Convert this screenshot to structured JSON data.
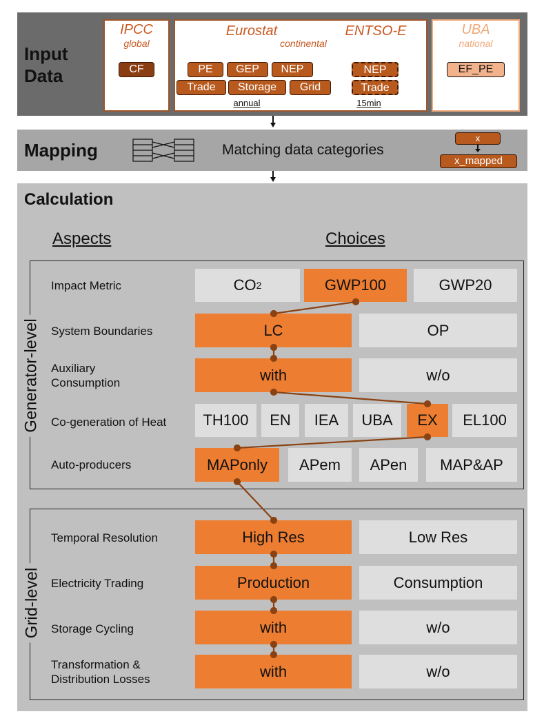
{
  "input": {
    "title_line1": "Input",
    "title_line2": "Data",
    "ipcc": {
      "name": "IPCC",
      "scope": "global",
      "chips": [
        "CF"
      ]
    },
    "eurostat": {
      "name": "Eurostat",
      "scope": "continental",
      "chips_row1": [
        "PE",
        "GEP",
        "NEP"
      ],
      "chips_row2": [
        "Trade",
        "Storage",
        "Grid"
      ],
      "resolution": "annual"
    },
    "entsoe": {
      "name": "ENTSO-E",
      "chips": [
        "NEP",
        "Trade"
      ],
      "resolution": "15min"
    },
    "uba": {
      "name": "UBA",
      "scope": "national",
      "chips": [
        "EF_PE"
      ]
    }
  },
  "mapping": {
    "title": "Mapping",
    "description": "Matching data categories",
    "example_from": "x",
    "example_to": "x_mapped"
  },
  "calculation": {
    "title": "Calculation",
    "aspects_header": "Aspects",
    "choices_header": "Choices",
    "generator_label": "Generator-level",
    "grid_label": "Grid-level",
    "rows": [
      {
        "aspect": "Impact Metric",
        "choices": [
          "CO",
          "GWP100",
          "GWP20"
        ],
        "co2_sub": "2",
        "selected": "GWP100"
      },
      {
        "aspect": "System Boundaries",
        "choices": [
          "LC",
          "OP"
        ],
        "selected": "LC"
      },
      {
        "aspect": "Auxiliary\nConsumption",
        "choices": [
          "with",
          "w/o"
        ],
        "selected": "with"
      },
      {
        "aspect": "Co-generation of Heat",
        "choices": [
          "TH100",
          "EN",
          "IEA",
          "UBA",
          "EX",
          "EL100"
        ],
        "selected": "EX"
      },
      {
        "aspect": "Auto-producers",
        "choices": [
          "MAPonly",
          "APem",
          "APen",
          "MAP&AP"
        ],
        "selected": "MAPonly"
      },
      {
        "aspect": "Temporal Resolution",
        "choices": [
          "High Res",
          "Low Res"
        ],
        "selected": "High Res"
      },
      {
        "aspect": "Electricity Trading",
        "choices": [
          "Production",
          "Consumption"
        ],
        "selected": "Production"
      },
      {
        "aspect": "Storage Cycling",
        "choices": [
          "with",
          "w/o"
        ],
        "selected": "with"
      },
      {
        "aspect": "Transformation &\nDistribution Losses",
        "choices": [
          "with",
          "w/o"
        ],
        "selected": "with"
      }
    ]
  },
  "colors": {
    "selected": "#ed7d31",
    "unselected": "#dedede",
    "connector": "#8a4212",
    "input_band": "#6b6b6b",
    "calc_band": "#c0c0c0"
  }
}
